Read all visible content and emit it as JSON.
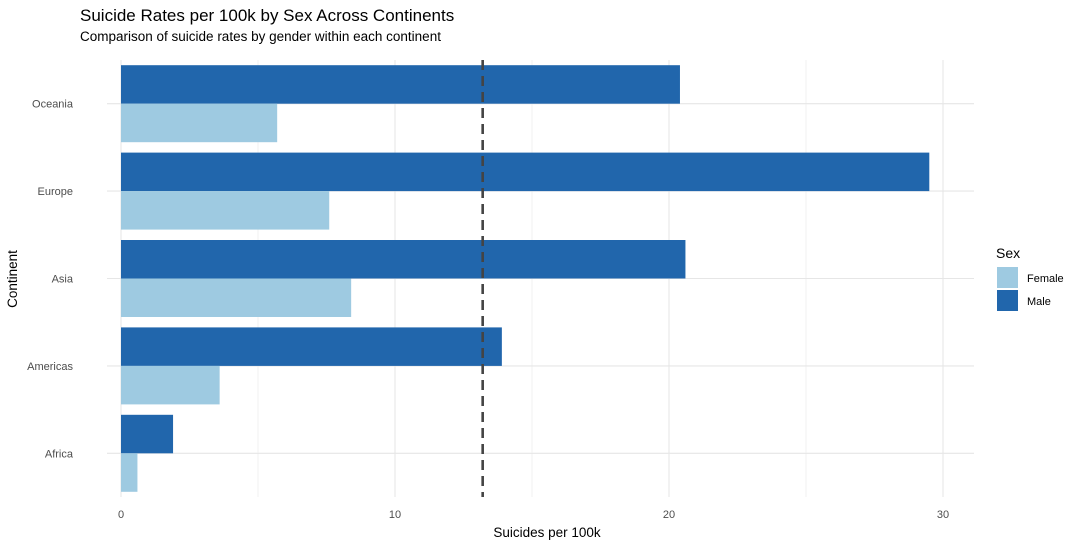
{
  "chart_data": {
    "type": "bar",
    "orientation": "horizontal",
    "title": "Suicide Rates per 100k by Sex Across Continents",
    "subtitle": "Comparison of suicide rates by gender within each continent",
    "xlabel": "Suicides per 100k",
    "ylabel": "Continent",
    "categories": [
      "Africa",
      "Americas",
      "Asia",
      "Europe",
      "Oceania"
    ],
    "series": [
      {
        "name": "Female",
        "color": "#9ecae1",
        "values": [
          0.6,
          3.6,
          8.4,
          7.6,
          5.7
        ]
      },
      {
        "name": "Male",
        "color": "#2166ac",
        "values": [
          1.9,
          13.9,
          20.6,
          29.5,
          20.4
        ]
      }
    ],
    "reference_line": {
      "value": 13.2,
      "style": "dashed",
      "color": "#444444"
    },
    "xlim": [
      0,
      31
    ],
    "xticks": [
      0,
      10,
      20,
      30
    ],
    "grid": true,
    "legend": {
      "title": "Sex",
      "placement": "right"
    }
  }
}
